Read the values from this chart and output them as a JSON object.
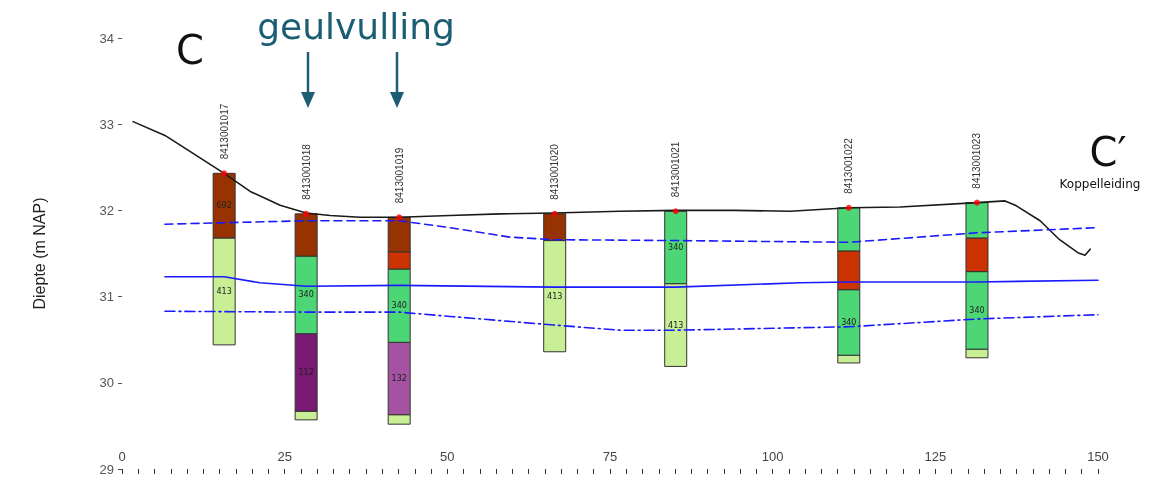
{
  "chart_data": {
    "type": "bar",
    "ylabel": "Diepte (m NAP)",
    "xlim": [
      0,
      150
    ],
    "xticks": [
      0,
      {
        "value": 2.5,
        "label": null
      },
      {
        "value": 5,
        "label": null
      },
      {
        "value": 7.5,
        "label": null
      },
      {
        "value": 10,
        "label": null
      },
      {
        "value": 12.5,
        "label": null
      },
      {
        "value": 15,
        "label": null
      },
      {
        "value": 17.5,
        "label": null
      },
      {
        "value": 20,
        "label": null
      },
      {
        "value": 22.5,
        "label": null
      },
      25,
      {
        "value": 27.5,
        "label": null
      },
      {
        "value": 30,
        "label": null
      },
      {
        "value": 32.5,
        "label": null
      },
      {
        "value": 35,
        "label": null
      },
      {
        "value": 37.5,
        "label": null
      },
      {
        "value": 40,
        "label": null
      },
      {
        "value": 42.5,
        "label": null
      },
      {
        "value": 45,
        "label": null
      },
      {
        "value": 47.5,
        "label": null
      },
      50,
      {
        "value": 52.5,
        "label": null
      },
      {
        "value": 55,
        "label": null
      },
      {
        "value": 57.5,
        "label": null
      },
      {
        "value": 60,
        "label": null
      },
      {
        "value": 62.5,
        "label": null
      },
      {
        "value": 65,
        "label": null
      },
      {
        "value": 67.5,
        "label": null
      },
      {
        "value": 70,
        "label": null
      },
      {
        "value": 72.5,
        "label": null
      },
      75,
      {
        "value": 77.5,
        "label": null
      },
      {
        "value": 80,
        "label": null
      },
      {
        "value": 82.5,
        "label": null
      },
      {
        "value": 85,
        "label": null
      },
      {
        "value": 87.5,
        "label": null
      },
      {
        "value": 90,
        "label": null
      },
      {
        "value": 92.5,
        "label": null
      },
      {
        "value": 95,
        "label": null
      },
      {
        "value": 97.5,
        "label": null
      },
      100,
      {
        "value": 102.5,
        "label": null
      },
      {
        "value": 105,
        "label": null
      },
      {
        "value": 107.5,
        "label": null
      },
      {
        "value": 110,
        "label": null
      },
      {
        "value": 112.5,
        "label": null
      },
      {
        "value": 115,
        "label": null
      },
      {
        "value": 117.5,
        "label": null
      },
      {
        "value": 120,
        "label": null
      },
      {
        "value": 122.5,
        "label": null
      },
      125,
      {
        "value": 127.5,
        "label": null
      },
      {
        "value": 130,
        "label": null
      },
      {
        "value": 132.5,
        "label": null
      },
      {
        "value": 135,
        "label": null
      },
      {
        "value": 137.5,
        "label": null
      },
      {
        "value": 140,
        "label": null
      },
      {
        "value": 142.5,
        "label": null
      },
      {
        "value": 145,
        "label": null
      },
      {
        "value": 147.5,
        "label": null
      },
      150
    ],
    "ylim": [
      29,
      34
    ],
    "yticks": [
      29,
      30,
      31,
      32,
      33,
      34
    ],
    "grid": false,
    "marker": "none",
    "x": [
      15.7,
      28.3,
      42.6,
      66.5,
      85.1,
      111.7,
      131.4
    ],
    "series": [
      {
        "base": [
          30.44,
          29.57,
          29.52,
          30.36,
          30.19,
          30.23,
          30.29
        ],
        "values": [
          1.24,
          0.1,
          0.11,
          1.29,
          0.96,
          0.09,
          0.1
        ],
        "colors": [
          "#c8ef96",
          "#c8ef96",
          "#c8ef96",
          "#c8ef96",
          "#c8ef96",
          "#c8ef96",
          "#c8ef96"
        ]
      },
      {
        "base": [
          31.68,
          29.67,
          29.63,
          31.65,
          31.15,
          30.32,
          30.39
        ],
        "values": [
          0.75,
          0.9,
          0.84,
          0.31,
          0.84,
          0.76,
          0.9
        ],
        "colors": [
          "#973300",
          "#7a1a72",
          "#a552a3",
          "#973300",
          "#4cd675",
          "#4cd675",
          "#4cd675"
        ]
      },
      {
        "base": [
          null,
          30.57,
          30.47,
          null,
          null,
          31.08,
          31.29
        ],
        "values": [
          null,
          0.9,
          0.85,
          null,
          null,
          0.45,
          0.39
        ],
        "colors": [
          null,
          "#4cd675",
          "#4cd675",
          null,
          null,
          "#cc3300",
          "#cc3300"
        ]
      },
      {
        "base": [
          null,
          31.47,
          31.32,
          null,
          null,
          31.53,
          31.68
        ],
        "values": [
          null,
          0.49,
          0.2,
          null,
          null,
          0.5,
          0.41
        ],
        "colors": [
          null,
          "#973300",
          "#cc3300",
          null,
          null,
          "#4cd675",
          "#4cd675"
        ]
      },
      {
        "base": [
          null,
          null,
          31.52,
          null,
          null,
          null,
          null
        ],
        "values": [
          null,
          null,
          0.4,
          null,
          null,
          null,
          null
        ],
        "colors": [
          null,
          null,
          "#973300",
          null,
          null,
          null,
          null
        ]
      },
      {
        "type": "line",
        "color": "#1a1a1a",
        "line_style": "solid",
        "x": [
          1.7,
          6.6,
          12.0,
          15.7,
          19.7,
          24.3,
          28.3,
          32.0,
          36.6,
          42.6,
          50.4,
          58.1,
          66.4,
          76.5,
          85.1,
          94.2,
          102.7,
          111.7,
          119.6,
          131.4,
          135.7,
          137.3,
          141.1,
          144.1,
          146.9,
          148.0,
          148.8
        ],
        "values": [
          33.03,
          32.87,
          32.61,
          32.43,
          32.22,
          32.06,
          31.97,
          31.94,
          31.92,
          31.92,
          31.94,
          31.96,
          31.97,
          31.99,
          32.0,
          32.0,
          31.99,
          32.03,
          32.04,
          32.09,
          32.11,
          32.06,
          31.88,
          31.66,
          31.51,
          31.48,
          31.55
        ]
      },
      {
        "type": "line",
        "color": "#1a1aff",
        "line_style": "dashed",
        "x": [
          6.6,
          28.3,
          42.6,
          50.4,
          59.6,
          66.4,
          85.1,
          111.7,
          131.4,
          150
        ],
        "values": [
          31.84,
          31.88,
          31.88,
          31.8,
          31.69,
          31.66,
          31.65,
          31.63,
          31.74,
          31.8
        ]
      },
      {
        "type": "line",
        "color": "#1a1aff",
        "line_style": "solid",
        "x": [
          6.6,
          15.7,
          21.2,
          28.3,
          42.6,
          66.4,
          85.1,
          104.2,
          111.7,
          131.4,
          150
        ],
        "values": [
          31.23,
          31.23,
          31.16,
          31.12,
          31.13,
          31.11,
          31.11,
          31.16,
          31.17,
          31.17,
          31.19
        ]
      },
      {
        "type": "line",
        "color": "#1a1aff",
        "line_style": "dashdot",
        "x": [
          6.6,
          28.3,
          42.6,
          50.4,
          66.4,
          76.5,
          85.1,
          111.7,
          131.4,
          150
        ],
        "values": [
          30.83,
          30.82,
          30.82,
          30.77,
          30.67,
          30.61,
          30.61,
          30.65,
          30.74,
          30.79
        ]
      },
      {
        "type": "scatter",
        "color": "#ff0000",
        "marker": "circle",
        "x": [
          15.7,
          28.3,
          42.6,
          66.5,
          85.1,
          111.7,
          131.4
        ],
        "values": [
          32.43,
          31.96,
          31.92,
          31.96,
          31.99,
          32.03,
          32.09
        ]
      }
    ],
    "annotations": [
      "geulvulling",
      "C",
      "C′",
      "Koppelleiding",
      {
        "text": "8413001017",
        "x": 15.7,
        "y": 32.43
      },
      {
        "text": "8413001018",
        "x": 28.3,
        "y": 31.96
      },
      {
        "text": "8413001019",
        "x": 42.6,
        "y": 31.92
      },
      {
        "text": "8413001020",
        "x": 66.5,
        "y": 31.96
      },
      {
        "text": "8413001021",
        "x": 85.1,
        "y": 31.99
      },
      {
        "text": "8413001022",
        "x": 111.7,
        "y": 32.03
      },
      {
        "text": "8413001023",
        "x": 131.4,
        "y": 32.09
      },
      "413",
      "692",
      "112",
      "340",
      "132",
      "340",
      "413",
      "413",
      "340",
      "340",
      "340"
    ]
  }
}
